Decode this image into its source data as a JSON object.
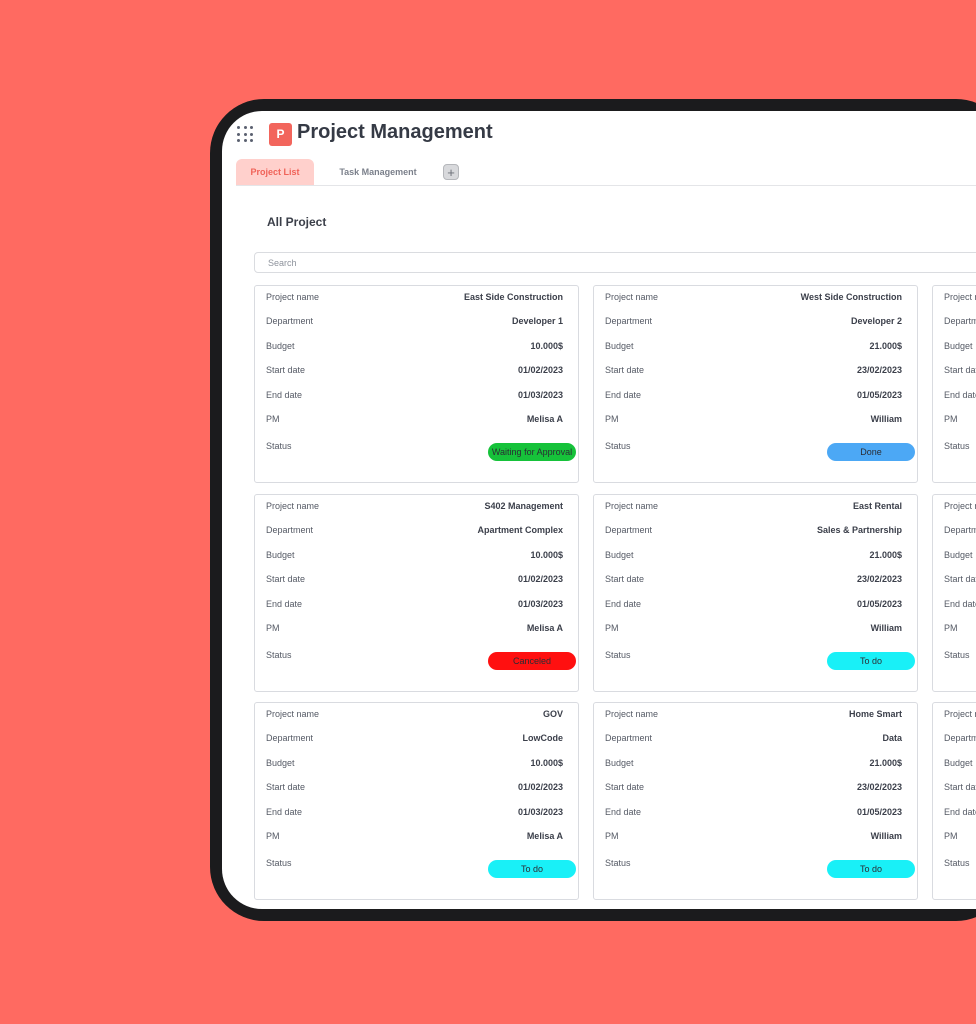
{
  "app": {
    "title": "Project Management",
    "logo_letter": "P"
  },
  "tabs": [
    {
      "label": "Project List",
      "active": true
    },
    {
      "label": "Task Management",
      "active": false
    }
  ],
  "add_tab_label": "+",
  "section_title": "All Project",
  "search": {
    "placeholder": "Search",
    "value": ""
  },
  "field_labels": {
    "project_name": "Project name",
    "department": "Department",
    "budget": "Budget",
    "start_date": "Start date",
    "end_date": "End date",
    "pm": "PM",
    "status": "Status"
  },
  "projects": [
    {
      "project_name": "East Side Construction",
      "department": "Developer 1",
      "budget": "10.000$",
      "start_date": "01/02/2023",
      "end_date": "01/03/2023",
      "pm": "Melisa A",
      "status": "Waiting for Approval",
      "status_color": "#16c23a"
    },
    {
      "project_name": "West Side Construction",
      "department": "Developer 2",
      "budget": "21.000$",
      "start_date": "23/02/2023",
      "end_date": "01/05/2023",
      "pm": "William",
      "status": "Done",
      "status_color": "#4ca8f5"
    },
    {
      "project_name": "",
      "department": "",
      "budget": "",
      "start_date": "",
      "end_date": "",
      "pm": "",
      "status": "",
      "status_color": ""
    },
    {
      "project_name": "S402 Management",
      "department": "Apartment Complex",
      "budget": "10.000$",
      "start_date": "01/02/2023",
      "end_date": "01/03/2023",
      "pm": "Melisa A",
      "status": "Canceled",
      "status_color": "#ff1010"
    },
    {
      "project_name": "East Rental",
      "department": "Sales & Partnership",
      "budget": "21.000$",
      "start_date": "23/02/2023",
      "end_date": "01/05/2023",
      "pm": "William",
      "status": "To do",
      "status_color": "#19f0f7"
    },
    {
      "project_name": "",
      "department": "",
      "budget": "",
      "start_date": "",
      "end_date": "",
      "pm": "",
      "status": "",
      "status_color": ""
    },
    {
      "project_name": "GOV",
      "department": "LowCode",
      "budget": "10.000$",
      "start_date": "01/02/2023",
      "end_date": "01/03/2023",
      "pm": "Melisa A",
      "status": "To do",
      "status_color": "#19f0f7"
    },
    {
      "project_name": "Home Smart",
      "department": "Data",
      "budget": "21.000$",
      "start_date": "23/02/2023",
      "end_date": "01/05/2023",
      "pm": "William",
      "status": "To do",
      "status_color": "#19f0f7"
    },
    {
      "project_name": "",
      "department": "",
      "budget": "",
      "start_date": "",
      "end_date": "",
      "pm": "",
      "status": "",
      "status_color": ""
    }
  ]
}
